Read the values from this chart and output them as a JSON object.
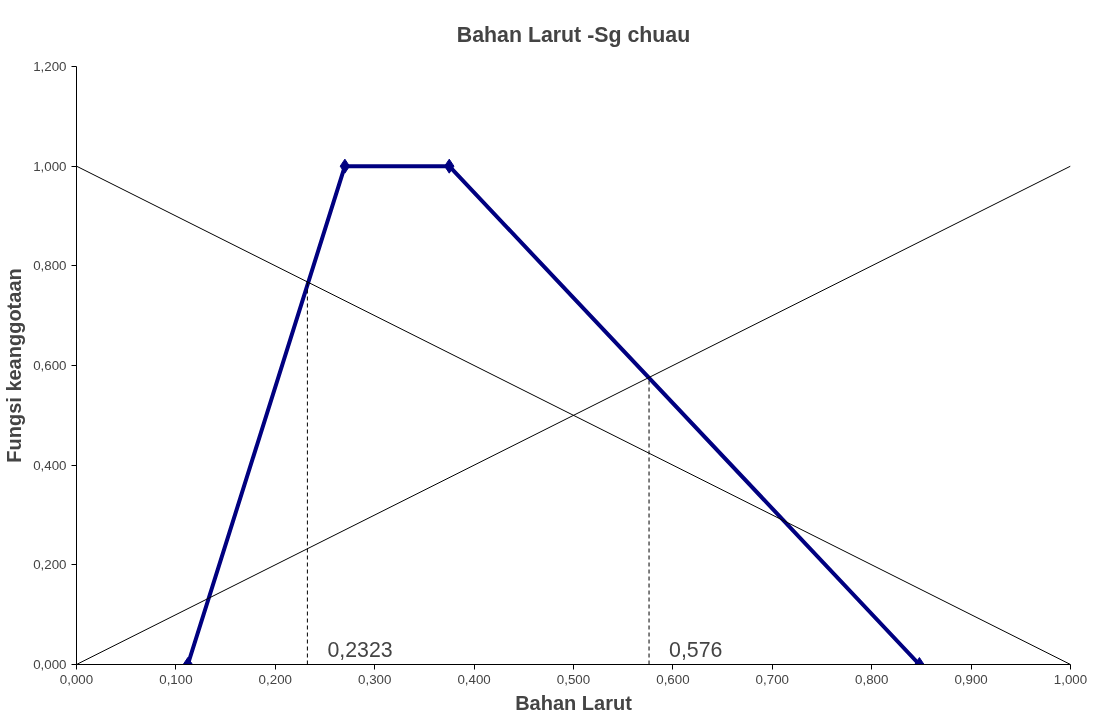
{
  "chart_data": {
    "type": "line",
    "title": "Bahan Larut -Sg chuau",
    "xlabel": "Bahan Larut",
    "ylabel": "Fungsi keanggotaan",
    "xlim": [
      0,
      1
    ],
    "ylim": [
      0,
      1.2
    ],
    "xticks": [
      {
        "value": 0,
        "label": "0,000"
      },
      {
        "value": 0.1,
        "label": "0,100"
      },
      {
        "value": 0.2,
        "label": "0,200"
      },
      {
        "value": 0.3,
        "label": "0,300"
      },
      {
        "value": 0.4,
        "label": "0,400"
      },
      {
        "value": 0.5,
        "label": "0,500"
      },
      {
        "value": 0.6,
        "label": "0,600"
      },
      {
        "value": 0.7,
        "label": "0,700"
      },
      {
        "value": 0.8,
        "label": "0,800"
      },
      {
        "value": 0.9,
        "label": "0,900"
      },
      {
        "value": 1,
        "label": "1,000"
      }
    ],
    "yticks": [
      {
        "value": 0,
        "label": "0,000"
      },
      {
        "value": 0.2,
        "label": "0,200"
      },
      {
        "value": 0.4,
        "label": "0,400"
      },
      {
        "value": 0.6,
        "label": "0,600"
      },
      {
        "value": 0.8,
        "label": "0,800"
      },
      {
        "value": 1,
        "label": "1,000"
      },
      {
        "value": 1.2,
        "label": "1,200"
      }
    ],
    "grid": false,
    "series": [
      {
        "color": "#000080",
        "x": [
          0.112,
          0.27,
          0.375,
          0.848
        ],
        "values": [
          0,
          1,
          1,
          0
        ],
        "marker": "diamond",
        "line_style": "solid"
      },
      {
        "color": "#000000",
        "x": [
          0,
          1
        ],
        "values": [
          1,
          0
        ],
        "marker": "none",
        "line_style": "solid"
      },
      {
        "color": "#000000",
        "x": [
          0,
          1
        ],
        "values": [
          0,
          1
        ],
        "marker": "none",
        "line_style": "solid"
      },
      {
        "color": "#000000",
        "x": [
          0.2323,
          0.2323
        ],
        "values": [
          0,
          0.77
        ],
        "marker": "none",
        "line_style": "dashed"
      },
      {
        "color": "#000000",
        "x": [
          0.576,
          0.576
        ],
        "values": [
          0,
          0.576
        ],
        "marker": "none",
        "line_style": "dashed"
      }
    ],
    "annotations": [
      {
        "text": "0,2323",
        "x": 0.2323,
        "y": 0
      },
      {
        "text": "0,576",
        "x": 0.576,
        "y": 0
      }
    ]
  }
}
